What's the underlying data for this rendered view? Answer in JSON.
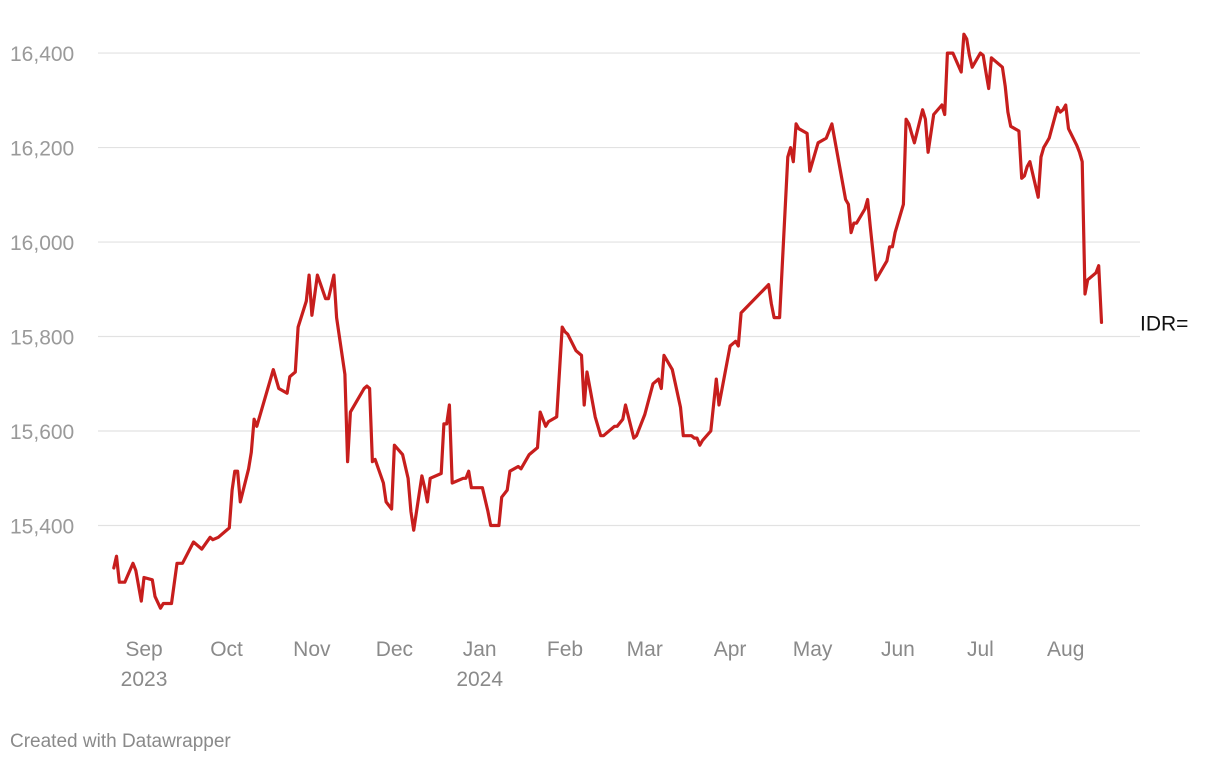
{
  "chart_data": {
    "type": "line",
    "series_label": "IDR=",
    "ylim": [
      15200,
      16470
    ],
    "yticks": [
      15400,
      15600,
      15800,
      16000,
      16200,
      16400
    ],
    "ytick_labels": [
      "15,400",
      "15,600",
      "15,800",
      "16,000",
      "16,200",
      "16,400"
    ],
    "xlim": [
      "2023-08-16",
      "2024-08-28"
    ],
    "xticks": [
      {
        "date": "2023-09-01",
        "label": "Sep",
        "sublabel": "2023"
      },
      {
        "date": "2023-10-01",
        "label": "Oct",
        "sublabel": ""
      },
      {
        "date": "2023-11-01",
        "label": "Nov",
        "sublabel": ""
      },
      {
        "date": "2023-12-01",
        "label": "Dec",
        "sublabel": ""
      },
      {
        "date": "2024-01-01",
        "label": "Jan",
        "sublabel": "2024"
      },
      {
        "date": "2024-02-01",
        "label": "Feb",
        "sublabel": ""
      },
      {
        "date": "2024-03-01",
        "label": "Mar",
        "sublabel": ""
      },
      {
        "date": "2024-04-01",
        "label": "Apr",
        "sublabel": ""
      },
      {
        "date": "2024-05-01",
        "label": "May",
        "sublabel": ""
      },
      {
        "date": "2024-06-01",
        "label": "Jun",
        "sublabel": ""
      },
      {
        "date": "2024-07-01",
        "label": "Jul",
        "sublabel": ""
      },
      {
        "date": "2024-08-01",
        "label": "Aug",
        "sublabel": ""
      }
    ],
    "line_color": "#c71e1d",
    "grid": true,
    "series": [
      {
        "x": [
          "2023-08-21",
          "2023-08-22",
          "2023-08-23",
          "2023-08-25",
          "2023-08-28",
          "2023-08-29",
          "2023-08-31",
          "2023-09-01",
          "2023-09-04",
          "2023-09-05",
          "2023-09-07",
          "2023-09-08",
          "2023-09-11",
          "2023-09-13",
          "2023-09-14",
          "2023-09-15",
          "2023-09-19",
          "2023-09-22",
          "2023-09-25",
          "2023-09-26",
          "2023-09-28",
          "2023-10-02",
          "2023-10-03",
          "2023-10-04",
          "2023-10-05",
          "2023-10-06",
          "2023-10-09",
          "2023-10-10",
          "2023-10-11",
          "2023-10-12",
          "2023-10-16",
          "2023-10-18",
          "2023-10-20",
          "2023-10-23",
          "2023-10-24",
          "2023-10-26",
          "2023-10-27",
          "2023-10-30",
          "2023-10-31",
          "2023-11-01",
          "2023-11-03",
          "2023-11-06",
          "2023-11-07",
          "2023-11-09",
          "2023-11-10",
          "2023-11-13",
          "2023-11-14",
          "2023-11-15",
          "2023-11-16",
          "2023-11-20",
          "2023-11-21",
          "2023-11-22",
          "2023-11-23",
          "2023-11-24",
          "2023-11-27",
          "2023-11-28",
          "2023-11-30",
          "2023-12-01",
          "2023-12-04",
          "2023-12-06",
          "2023-12-07",
          "2023-12-08",
          "2023-12-11",
          "2023-12-12",
          "2023-12-13",
          "2023-12-14",
          "2023-12-18",
          "2023-12-19",
          "2023-12-20",
          "2023-12-21",
          "2023-12-22",
          "2023-12-26",
          "2023-12-27",
          "2023-12-28",
          "2023-12-29",
          "2024-01-02",
          "2024-01-04",
          "2024-01-05",
          "2024-01-08",
          "2024-01-09",
          "2024-01-11",
          "2024-01-12",
          "2024-01-15",
          "2024-01-16",
          "2024-01-19",
          "2024-01-22",
          "2024-01-23",
          "2024-01-25",
          "2024-01-26",
          "2024-01-29",
          "2024-01-31",
          "2024-02-01",
          "2024-02-02",
          "2024-02-05",
          "2024-02-07",
          "2024-02-08",
          "2024-02-09",
          "2024-02-12",
          "2024-02-14",
          "2024-02-15",
          "2024-02-19",
          "2024-02-20",
          "2024-02-22",
          "2024-02-23",
          "2024-02-26",
          "2024-02-27",
          "2024-03-01",
          "2024-03-04",
          "2024-03-06",
          "2024-03-07",
          "2024-03-08",
          "2024-03-11",
          "2024-03-14",
          "2024-03-15",
          "2024-03-18",
          "2024-03-19",
          "2024-03-20",
          "2024-03-21",
          "2024-03-22",
          "2024-03-25",
          "2024-03-27",
          "2024-03-28",
          "2024-04-01",
          "2024-04-03",
          "2024-04-04",
          "2024-04-05",
          "2024-04-15",
          "2024-04-16",
          "2024-04-17",
          "2024-04-18",
          "2024-04-19",
          "2024-04-22",
          "2024-04-23",
          "2024-04-24",
          "2024-04-25",
          "2024-04-26",
          "2024-04-29",
          "2024-04-30",
          "2024-05-02",
          "2024-05-03",
          "2024-05-06",
          "2024-05-07",
          "2024-05-08",
          "2024-05-13",
          "2024-05-14",
          "2024-05-15",
          "2024-05-16",
          "2024-05-17",
          "2024-05-20",
          "2024-05-21",
          "2024-05-22",
          "2024-05-24",
          "2024-05-27",
          "2024-05-28",
          "2024-05-29",
          "2024-05-30",
          "2024-05-31",
          "2024-06-03",
          "2024-06-04",
          "2024-06-05",
          "2024-06-06",
          "2024-06-07",
          "2024-06-10",
          "2024-06-11",
          "2024-06-12",
          "2024-06-13",
          "2024-06-14",
          "2024-06-17",
          "2024-06-18",
          "2024-06-19",
          "2024-06-20",
          "2024-06-21",
          "2024-06-24",
          "2024-06-25",
          "2024-06-26",
          "2024-06-27",
          "2024-06-28",
          "2024-07-01",
          "2024-07-02",
          "2024-07-03",
          "2024-07-04",
          "2024-07-05",
          "2024-07-09",
          "2024-07-10",
          "2024-07-11",
          "2024-07-12",
          "2024-07-15",
          "2024-07-16",
          "2024-07-17",
          "2024-07-18",
          "2024-07-19",
          "2024-07-22",
          "2024-07-23",
          "2024-07-24",
          "2024-07-25",
          "2024-07-26",
          "2024-07-29",
          "2024-07-30",
          "2024-07-31",
          "2024-08-01",
          "2024-08-02",
          "2024-08-05",
          "2024-08-06",
          "2024-08-07",
          "2024-08-08",
          "2024-08-09",
          "2024-08-12",
          "2024-08-13",
          "2024-08-14"
        ],
        "values": [
          15310,
          15335,
          15280,
          15280,
          15320,
          15305,
          15240,
          15290,
          15285,
          15250,
          15225,
          15235,
          15235,
          15320,
          15320,
          15320,
          15365,
          15350,
          15375,
          15370,
          15375,
          15395,
          15475,
          15515,
          15515,
          15450,
          15520,
          15555,
          15625,
          15610,
          15690,
          15730,
          15690,
          15680,
          15715,
          15725,
          15820,
          15875,
          15930,
          15845,
          15930,
          15880,
          15880,
          15930,
          15840,
          15720,
          15535,
          15640,
          15650,
          15690,
          15695,
          15690,
          15535,
          15540,
          15490,
          15450,
          15435,
          15570,
          15550,
          15500,
          15430,
          15390,
          15505,
          15480,
          15450,
          15500,
          15510,
          15615,
          15615,
          15655,
          15490,
          15500,
          15500,
          15515,
          15480,
          15480,
          15430,
          15400,
          15400,
          15460,
          15475,
          15515,
          15525,
          15520,
          15550,
          15565,
          15640,
          15610,
          15620,
          15630,
          15820,
          15810,
          15805,
          15770,
          15760,
          15655,
          15725,
          15630,
          15590,
          15590,
          15610,
          15610,
          15625,
          15655,
          15585,
          15590,
          15635,
          15700,
          15710,
          15690,
          15760,
          15730,
          15650,
          15590,
          15590,
          15585,
          15585,
          15570,
          15580,
          15600,
          15710,
          15655,
          15780,
          15790,
          15780,
          15850,
          15910,
          15870,
          15840,
          15840,
          15840,
          16180,
          16200,
          16170,
          16250,
          16240,
          16230,
          16150,
          16190,
          16210,
          16220,
          16235,
          16250,
          16090,
          16080,
          16020,
          16040,
          16040,
          16070,
          16090,
          16030,
          15920,
          15950,
          15960,
          15990,
          15990,
          16020,
          16080,
          16260,
          16250,
          16230,
          16210,
          16280,
          16260,
          16190,
          16230,
          16270,
          16290,
          16270,
          16400,
          16400,
          16400,
          16360,
          16440,
          16430,
          16395,
          16370,
          16400,
          16395,
          16360,
          16325,
          16390,
          16370,
          16330,
          16275,
          16245,
          16235,
          16135,
          16140,
          16160,
          16170,
          16095,
          16180,
          16200,
          16210,
          16220,
          16285,
          16275,
          16280,
          16290,
          16240,
          16205,
          16190,
          16170,
          15890,
          15920,
          15935,
          15950,
          15830
        ]
      }
    ]
  },
  "footer": {
    "credit": "Created with Datawrapper"
  }
}
